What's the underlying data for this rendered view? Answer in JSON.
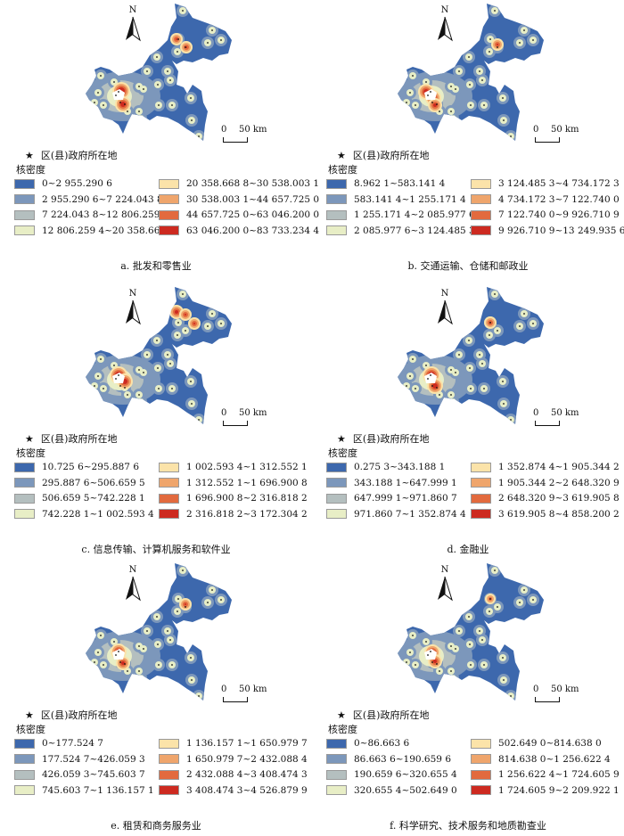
{
  "star_label": "区(县)政府所在地",
  "legend_title": "核密度",
  "north_label": "N",
  "scale_labels": [
    "0",
    "50 km"
  ],
  "colors": [
    "#3d68ad",
    "#7c97bb",
    "#b4bfbf",
    "#e8eec6",
    "#fbe3a9",
    "#efa56c",
    "#e26a3e",
    "#cd2a20"
  ],
  "panels": [
    {
      "caption": "a. 批发和零售业",
      "ranges": [
        "0~2 955.290 6",
        "2 955.290 6~7 224.043 8",
        "7 224.043 8~12 806.259 4",
        "12 806.259 4~20 358.668 8",
        "20 358.668 8~30 538.003 1",
        "30 538.003 1~44 657.725 0",
        "44 657.725 0~63 046.200 0",
        "63 046.200 0~83 733.234 4"
      ]
    },
    {
      "caption": "b. 交通运输、仓储和邮政业",
      "ranges": [
        "8.962 1~583.141 4",
        "583.141 4~1 255.171 4",
        "1 255.171 4~2 085.977 6",
        "2 085.977 6~3 124.485 3",
        "3 124.485 3~4 734.172 3",
        "4 734.172 3~7 122.740 0",
        "7 122.740 0~9 926.710 9",
        "9 926.710 9~13 249.935 6"
      ]
    },
    {
      "caption": "c. 信息传输、计算机服务和软件业",
      "ranges": [
        "10.725 6~295.887 6",
        "295.887 6~506.659 5",
        "506.659 5~742.228 1",
        "742.228 1~1 002.593 4",
        "1 002.593 4~1 312.552 1",
        "1 312.552 1~1 696.900 8",
        "1 696.900 8~2 316.818 2",
        "2 316.818 2~3 172.304 2"
      ]
    },
    {
      "caption": "d. 金融业",
      "ranges": [
        "0.275 3~343.188 1",
        "343.188 1~647.999 1",
        "647.999 1~971.860 7",
        "971.860 7~1 352.874 4",
        "1 352.874 4~1 905.344 2",
        "1 905.344 2~2 648.320 9",
        "2 648.320 9~3 619.905 8",
        "3 619.905 8~4 858.200 2"
      ]
    },
    {
      "caption": "e. 租赁和商务服务业",
      "ranges": [
        "0~177.524 7",
        "177.524 7~426.059 3",
        "426.059 3~745.603 7",
        "745.603 7~1 136.157 1",
        "1 136.157 1~1 650.979 7",
        "1 650.979 7~2 432.088 4",
        "2 432.088 4~3 408.474 3",
        "3 408.474 3~4 526.879 9"
      ]
    },
    {
      "caption": "f. 科学研究、技术服务和地质勘查业",
      "ranges": [
        "0~86.663 6",
        "86.663 6~190.659 6",
        "190.659 6~320.655 4",
        "320.655 4~502.649 0",
        "502.649 0~814.638 0",
        "814.638 0~1 256.622 4",
        "1 256.622 4~1 724.605 9",
        "1 724.605 9~2 209.922 1"
      ]
    }
  ]
}
